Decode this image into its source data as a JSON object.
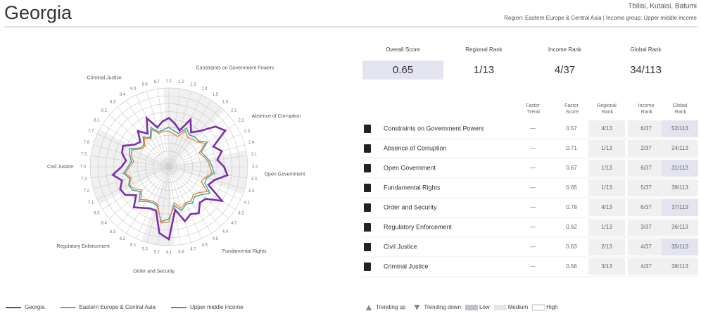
{
  "header": {
    "title": "Georgia",
    "cities": "Tbilisi, Kutaisi, Batumi",
    "region_line": "Region: Eastern Europe & Central Asia | Income group: Upper middle income"
  },
  "chart_data": {
    "type": "radar",
    "factors": [
      {
        "name": "Constraints on Government Powers",
        "subfactors": [
          "1.1",
          "1.2",
          "1.3",
          "1.4",
          "1.5",
          "1.6"
        ]
      },
      {
        "name": "Absence of Corruption",
        "subfactors": [
          "2.1",
          "2.2",
          "2.3",
          "2.4"
        ]
      },
      {
        "name": "Open Government",
        "subfactors": [
          "3.1",
          "3.2",
          "3.3",
          "3.4"
        ]
      },
      {
        "name": "Fundamental Rights",
        "subfactors": [
          "4.1",
          "4.2",
          "4.3",
          "4.4",
          "4.5",
          "4.6",
          "4.7",
          "4.8"
        ]
      },
      {
        "name": "Order and Security",
        "subfactors": [
          "5.1",
          "5.2",
          "5.3"
        ]
      },
      {
        "name": "Regulatory Enforcement",
        "subfactors": [
          "6.1",
          "6.2",
          "6.3",
          "6.4",
          "6.5"
        ]
      },
      {
        "name": "Civil Justice",
        "subfactors": [
          "7.1",
          "7.2",
          "7.3",
          "7.4",
          "7.5",
          "7.6",
          "7.7"
        ]
      },
      {
        "name": "Criminal Justice",
        "subfactors": [
          "8.1",
          "8.2",
          "8.3",
          "8.4",
          "8.5",
          "8.6",
          "8.7"
        ]
      }
    ],
    "rlim": [
      0,
      1
    ],
    "rticks": [
      0.1,
      0.2,
      0.3,
      0.4,
      0.5,
      0.6,
      0.7,
      0.8,
      0.9,
      1
    ],
    "series": [
      {
        "name": "Georgia",
        "color": "#7b2fa8",
        "values": [
          0.62,
          0.55,
          0.48,
          0.66,
          0.52,
          0.6,
          0.78,
          0.85,
          0.62,
          0.7,
          0.62,
          0.7,
          0.75,
          0.6,
          0.55,
          0.8,
          0.62,
          0.6,
          0.7,
          0.66,
          0.72,
          0.55,
          0.92,
          0.85,
          0.58,
          0.58,
          0.62,
          0.68,
          0.55,
          0.66,
          0.68,
          0.62,
          0.72,
          0.6,
          0.55,
          0.62,
          0.64,
          0.52,
          0.48,
          0.6,
          0.5,
          0.68,
          0.52,
          0.58
        ]
      },
      {
        "name": "Eastern Europe & Central Asia",
        "color": "#e8823a",
        "values": [
          0.45,
          0.42,
          0.4,
          0.5,
          0.44,
          0.46,
          0.48,
          0.55,
          0.42,
          0.46,
          0.5,
          0.52,
          0.55,
          0.48,
          0.45,
          0.58,
          0.5,
          0.47,
          0.52,
          0.5,
          0.55,
          0.46,
          0.7,
          0.72,
          0.5,
          0.48,
          0.5,
          0.55,
          0.45,
          0.52,
          0.55,
          0.5,
          0.56,
          0.5,
          0.45,
          0.5,
          0.52,
          0.42,
          0.4,
          0.48,
          0.42,
          0.52,
          0.44,
          0.46
        ]
      },
      {
        "name": "Upper middle income",
        "color": "#2aa198",
        "values": [
          0.5,
          0.46,
          0.44,
          0.54,
          0.48,
          0.5,
          0.5,
          0.58,
          0.45,
          0.48,
          0.52,
          0.55,
          0.58,
          0.5,
          0.5,
          0.62,
          0.54,
          0.5,
          0.55,
          0.52,
          0.58,
          0.5,
          0.66,
          0.7,
          0.52,
          0.5,
          0.52,
          0.58,
          0.48,
          0.55,
          0.56,
          0.52,
          0.58,
          0.52,
          0.48,
          0.52,
          0.55,
          0.44,
          0.42,
          0.5,
          0.44,
          0.55,
          0.46,
          0.48
        ]
      }
    ]
  },
  "summary": [
    {
      "label": "Overall Score",
      "value": "0.65"
    },
    {
      "label": "Regional Rank",
      "value": "1/13"
    },
    {
      "label": "Income Rank",
      "value": "4/37"
    },
    {
      "label": "Global Rank",
      "value": "34/113"
    }
  ],
  "table": {
    "columns": [
      "Factor Trend",
      "Factor Score",
      "Regional Rank",
      "Income Rank",
      "Global Rank"
    ],
    "rows": [
      {
        "name": "Constraints on Government Powers",
        "trend": "—",
        "score": "0.57",
        "regional": "4/13",
        "income": "6/37",
        "global": "52/113"
      },
      {
        "name": "Absence of Corruption",
        "trend": "—",
        "score": "0.71",
        "regional": "1/13",
        "income": "2/37",
        "global": "24/113"
      },
      {
        "name": "Open Government",
        "trend": "—",
        "score": "0.67",
        "regional": "1/13",
        "income": "6/37",
        "global": "31/113"
      },
      {
        "name": "Fundamental Rights",
        "trend": "—",
        "score": "0.65",
        "regional": "1/13",
        "income": "5/37",
        "global": "39/113"
      },
      {
        "name": "Order and Security",
        "trend": "—",
        "score": "0.78",
        "regional": "4/13",
        "income": "6/37",
        "global": "37/113"
      },
      {
        "name": "Regulatory Enforcement",
        "trend": "—",
        "score": "0.62",
        "regional": "1/13",
        "income": "3/37",
        "global": "36/113"
      },
      {
        "name": "Civil Justice",
        "trend": "—",
        "score": "0.63",
        "regional": "2/13",
        "income": "4/37",
        "global": "35/113"
      },
      {
        "name": "Criminal Justice",
        "trend": "—",
        "score": "0.56",
        "regional": "3/13",
        "income": "4/37",
        "global": "38/113"
      }
    ]
  },
  "legend": {
    "trending_up": "Trending up",
    "trending_down": "Trending down",
    "low": "Low",
    "medium": "Medium",
    "high": "High"
  }
}
